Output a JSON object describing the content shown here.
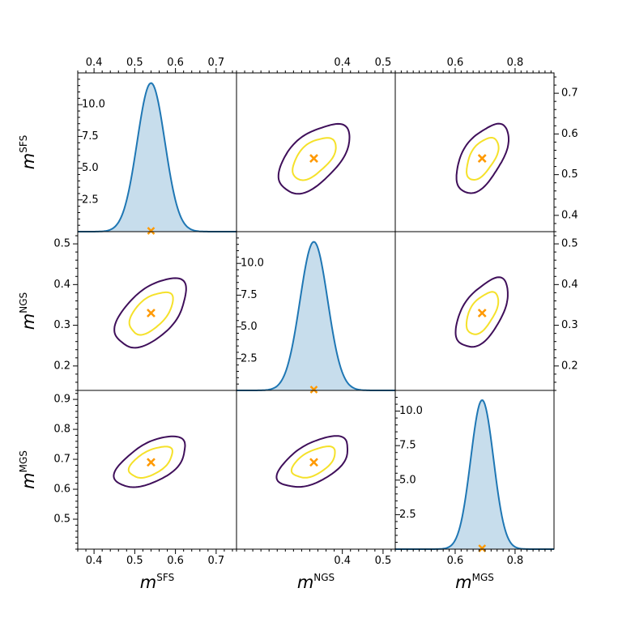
{
  "chart_data": {
    "type": "corner-plot",
    "parameters": [
      {
        "id": "sfs",
        "symbol": "m",
        "superscript": "SFS",
        "best_fit": 0.54,
        "range": [
          0.36,
          0.75
        ],
        "ticks": [
          0.4,
          0.5,
          0.6,
          0.7
        ],
        "tick_labels": [
          "0.4",
          "0.5",
          "0.6",
          "0.7"
        ]
      },
      {
        "id": "ngs",
        "symbol": "m",
        "superscript": "NGS",
        "best_fit": 0.33,
        "range": [
          0.14,
          0.53
        ],
        "ticks": [
          0.2,
          0.3,
          0.4,
          0.5
        ],
        "tick_labels": [
          "0.2",
          "0.3",
          "0.4",
          "0.5"
        ]
      },
      {
        "id": "mgs",
        "symbol": "m",
        "superscript": "MGS",
        "best_fit": 0.69,
        "range": [
          0.4,
          0.93
        ],
        "ticks": [
          0.5,
          0.6,
          0.7,
          0.8,
          0.9
        ],
        "tick_labels": [
          "0.5",
          "0.6",
          "0.7",
          "0.8",
          "0.9"
        ],
        "top_ticks": [
          0.6,
          0.8
        ],
        "top_tick_labels": [
          "0.6",
          "0.8"
        ]
      }
    ],
    "density_panels": [
      {
        "param": "sfs",
        "peak_x": 0.54,
        "peak": 11.7,
        "sigma": 0.034,
        "ylim": [
          0,
          12.5
        ],
        "ticks": [
          2.5,
          5.0,
          7.5,
          10.0
        ],
        "tick_labels": [
          "2.5",
          "5.0",
          "7.5",
          "10.0"
        ]
      },
      {
        "param": "ngs",
        "peak_x": 0.33,
        "peak": 11.7,
        "sigma": 0.034,
        "ylim": [
          0,
          12.5
        ],
        "ticks": [
          2.5,
          5.0,
          7.5,
          10.0
        ],
        "tick_labels": [
          "2.5",
          "5.0",
          "7.5",
          "10.0"
        ]
      },
      {
        "param": "mgs",
        "peak_x": 0.69,
        "peak": 10.8,
        "sigma": 0.038,
        "ylim": [
          0,
          11.5
        ],
        "ticks": [
          2.5,
          5.0,
          7.5,
          10.0
        ],
        "tick_labels": [
          "2.5",
          "5.0",
          "7.5",
          "10.0"
        ]
      }
    ],
    "contour_panels": [
      {
        "row": 0,
        "col": 1,
        "x": "ngs",
        "y": "sfs"
      },
      {
        "row": 0,
        "col": 2,
        "x": "mgs",
        "y": "sfs"
      },
      {
        "row": 1,
        "col": 0,
        "x": "sfs",
        "y": "ngs"
      },
      {
        "row": 1,
        "col": 2,
        "x": "mgs",
        "y": "ngs"
      },
      {
        "row": 2,
        "col": 0,
        "x": "sfs",
        "y": "mgs"
      },
      {
        "row": 2,
        "col": 1,
        "x": "ngs",
        "y": "mgs"
      }
    ],
    "contour_levels": [
      {
        "label": "inner",
        "color": "#f5e12a",
        "sigma_scale": 1.52
      },
      {
        "label": "outer",
        "color": "#3f0f5a",
        "sigma_scale": 2.49
      }
    ],
    "marker": {
      "symbol": "x",
      "color": "#ff9900"
    },
    "density_color": "#1f77b4",
    "density_fill": "#1f77b4"
  }
}
